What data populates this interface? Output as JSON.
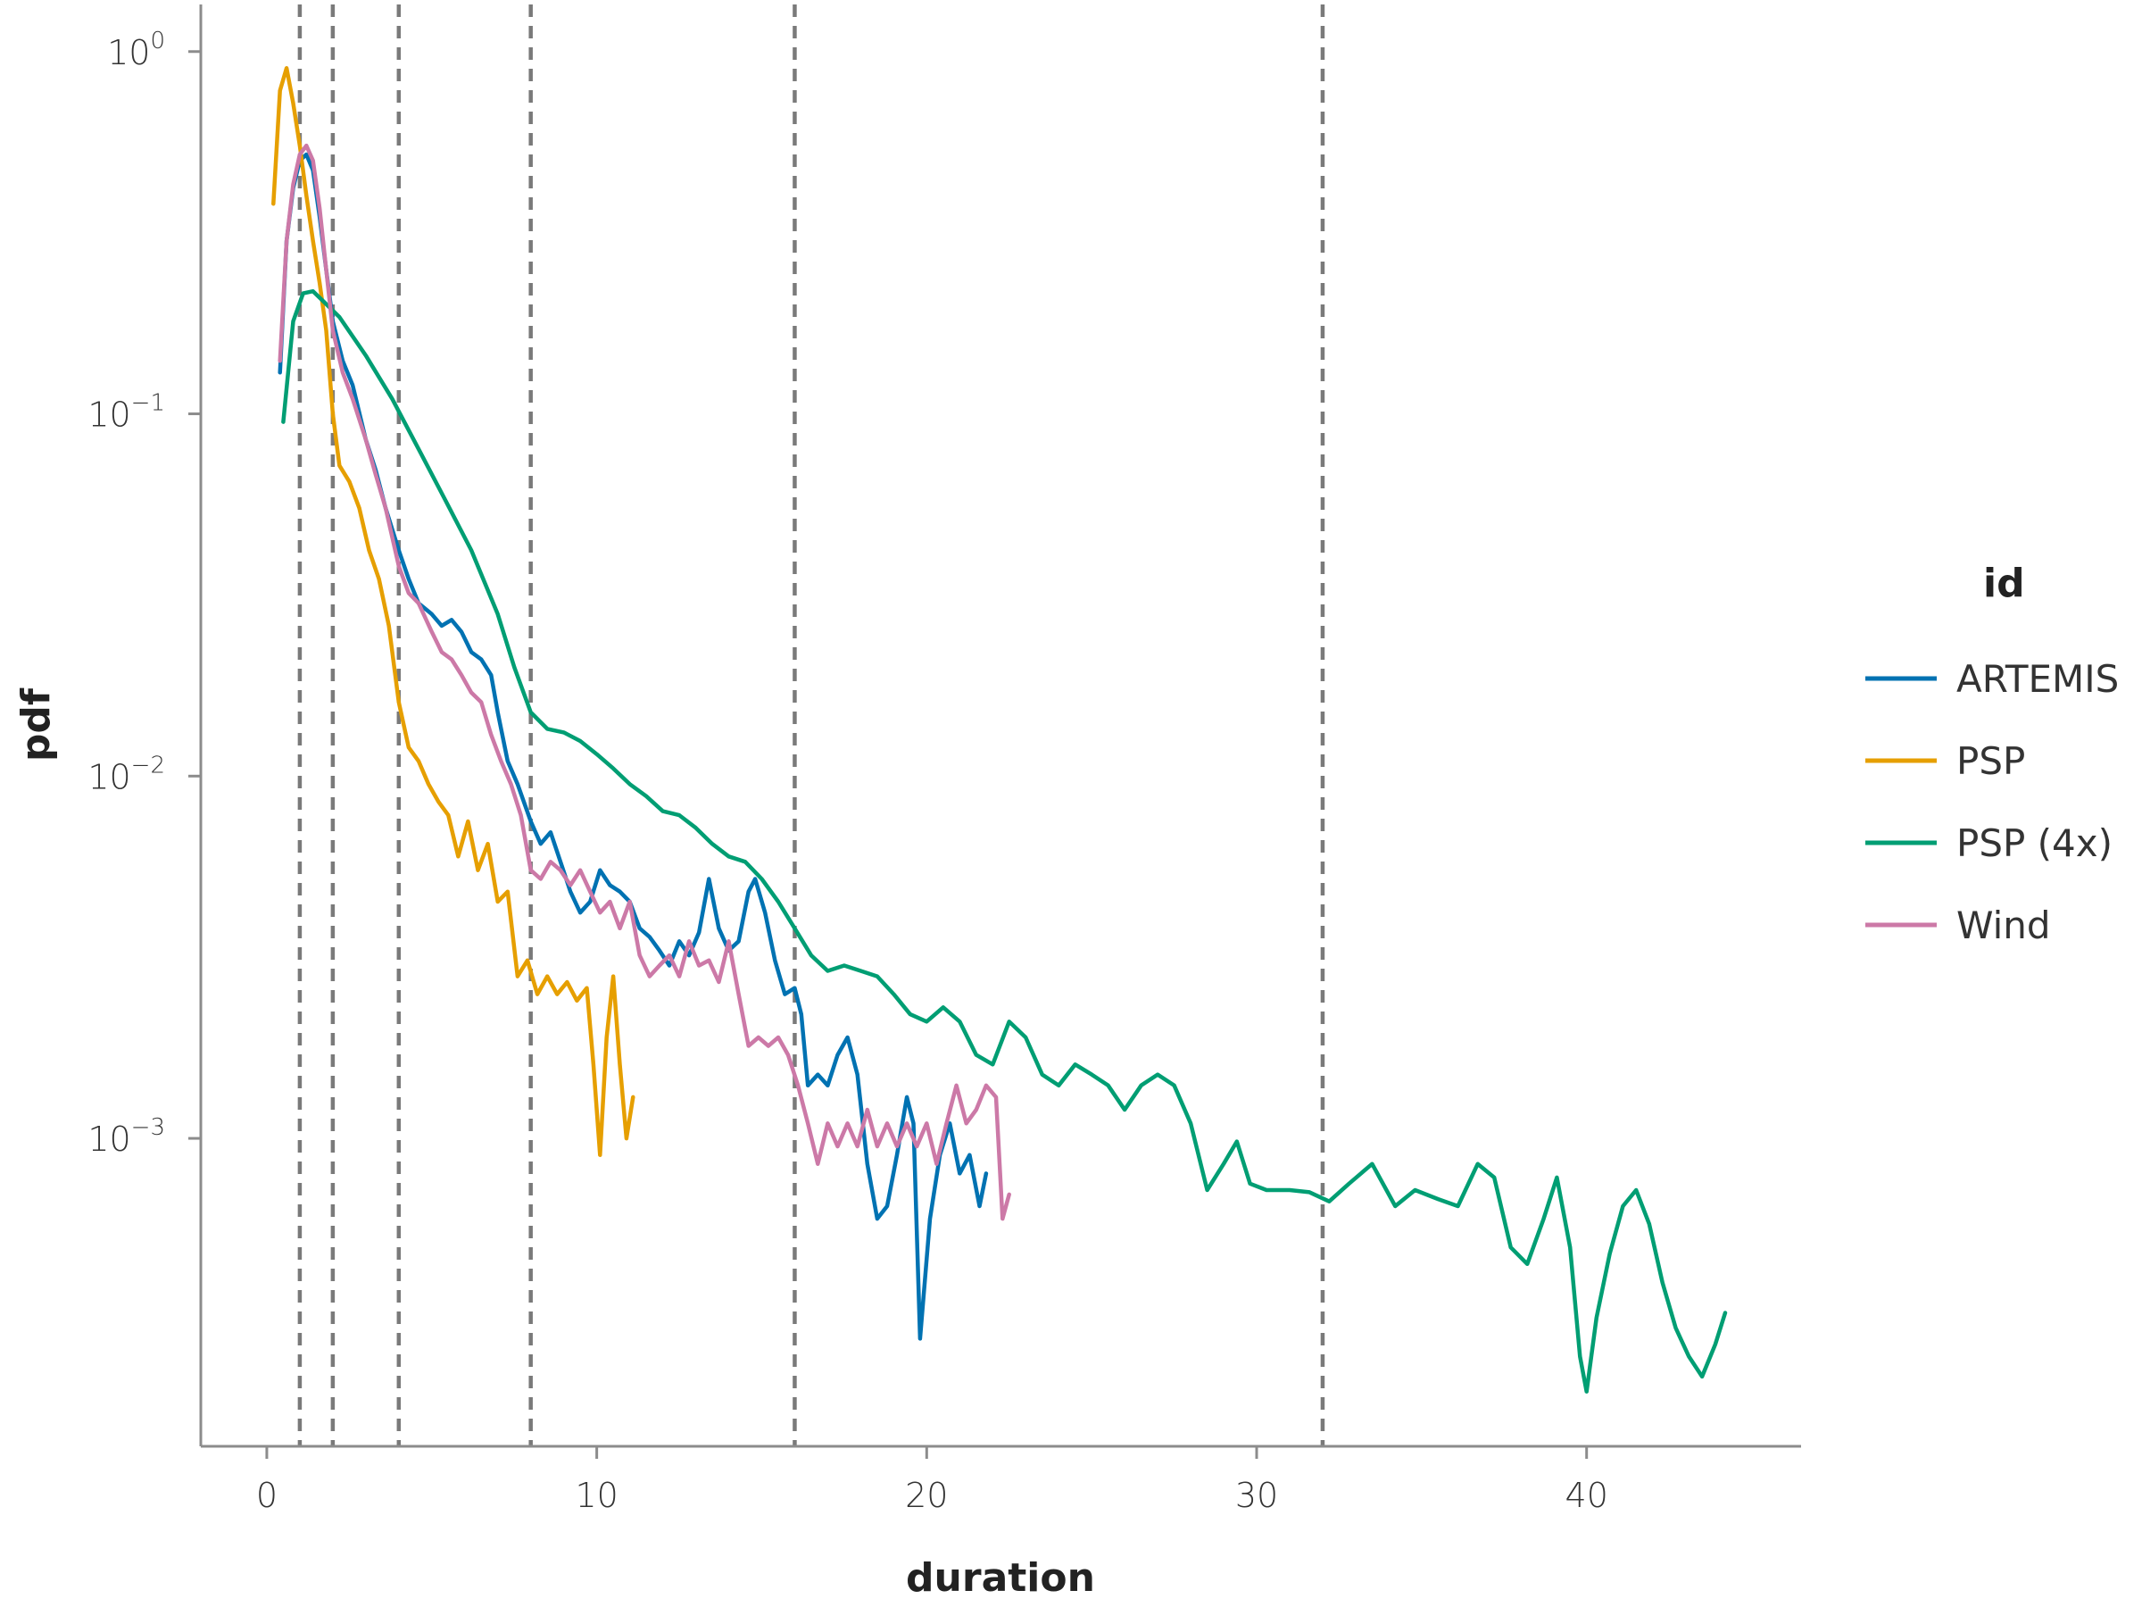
{
  "chart_data": {
    "type": "line",
    "xlabel": "duration",
    "ylabel": "pdf",
    "xlim": [
      -2,
      46.5
    ],
    "ylim_log10": [
      -3.85,
      0.13
    ],
    "y_scale": "log10",
    "x_ticks": [
      0,
      10,
      20,
      30,
      40
    ],
    "y_ticks": [
      {
        "base": "10",
        "exp": "0",
        "value": 1
      },
      {
        "base": "10",
        "exp": "−1",
        "value": 0.1
      },
      {
        "base": "10",
        "exp": "−2",
        "value": 0.01
      },
      {
        "base": "10",
        "exp": "−3",
        "value": 0.001
      }
    ],
    "vertical_lines": [
      1,
      2,
      4,
      8,
      16,
      32
    ],
    "legend": {
      "title": "id",
      "position": "right"
    },
    "series": [
      {
        "name": "ARTEMIS",
        "color": "#0072B2",
        "points": [
          [
            0.4,
            0.13
          ],
          [
            0.6,
            0.3
          ],
          [
            0.8,
            0.42
          ],
          [
            1.0,
            0.5
          ],
          [
            1.2,
            0.52
          ],
          [
            1.4,
            0.47
          ],
          [
            1.6,
            0.35
          ],
          [
            1.8,
            0.25
          ],
          [
            2.0,
            0.18
          ],
          [
            2.3,
            0.14
          ],
          [
            2.6,
            0.12
          ],
          [
            3.0,
            0.085
          ],
          [
            3.3,
            0.07
          ],
          [
            3.6,
            0.055
          ],
          [
            4.0,
            0.042
          ],
          [
            4.3,
            0.035
          ],
          [
            4.6,
            0.03
          ],
          [
            5.0,
            0.028
          ],
          [
            5.3,
            0.026
          ],
          [
            5.6,
            0.027
          ],
          [
            5.9,
            0.025
          ],
          [
            6.2,
            0.022
          ],
          [
            6.5,
            0.021
          ],
          [
            6.8,
            0.019
          ],
          [
            7.0,
            0.015
          ],
          [
            7.3,
            0.011
          ],
          [
            7.6,
            0.0095
          ],
          [
            8.0,
            0.0075
          ],
          [
            8.3,
            0.0065
          ],
          [
            8.6,
            0.007
          ],
          [
            8.9,
            0.0058
          ],
          [
            9.2,
            0.0048
          ],
          [
            9.5,
            0.0042
          ],
          [
            9.8,
            0.0045
          ],
          [
            10.1,
            0.0055
          ],
          [
            10.4,
            0.005
          ],
          [
            10.7,
            0.0048
          ],
          [
            11.0,
            0.0045
          ],
          [
            11.3,
            0.0038
          ],
          [
            11.6,
            0.0036
          ],
          [
            11.9,
            0.0033
          ],
          [
            12.2,
            0.003
          ],
          [
            12.5,
            0.0035
          ],
          [
            12.8,
            0.0032
          ],
          [
            13.1,
            0.0037
          ],
          [
            13.4,
            0.0052
          ],
          [
            13.7,
            0.0038
          ],
          [
            14.0,
            0.0033
          ],
          [
            14.3,
            0.0035
          ],
          [
            14.6,
            0.0048
          ],
          [
            14.8,
            0.0052
          ],
          [
            15.1,
            0.0042
          ],
          [
            15.4,
            0.0031
          ],
          [
            15.7,
            0.0025
          ],
          [
            16.0,
            0.0026
          ],
          [
            16.2,
            0.0022
          ],
          [
            16.4,
            0.0014
          ],
          [
            16.7,
            0.0015
          ],
          [
            17.0,
            0.0014
          ],
          [
            17.3,
            0.0017
          ],
          [
            17.6,
            0.0019
          ],
          [
            17.9,
            0.0015
          ],
          [
            18.2,
            0.00085
          ],
          [
            18.5,
            0.0006
          ],
          [
            18.8,
            0.00065
          ],
          [
            19.1,
            0.0009
          ],
          [
            19.4,
            0.0013
          ],
          [
            19.6,
            0.0011
          ],
          [
            19.8,
            0.00028
          ],
          [
            20.1,
            0.0006
          ],
          [
            20.4,
            0.0009
          ],
          [
            20.7,
            0.0011
          ],
          [
            21.0,
            0.0008
          ],
          [
            21.3,
            0.0009
          ],
          [
            21.6,
            0.00065
          ],
          [
            21.8,
            0.0008
          ]
        ]
      },
      {
        "name": "PSP",
        "color": "#E69F00",
        "points": [
          [
            0.2,
            0.38
          ],
          [
            0.4,
            0.78
          ],
          [
            0.6,
            0.9
          ],
          [
            0.8,
            0.72
          ],
          [
            1.0,
            0.55
          ],
          [
            1.2,
            0.4
          ],
          [
            1.4,
            0.3
          ],
          [
            1.6,
            0.23
          ],
          [
            1.8,
            0.17
          ],
          [
            2.0,
            0.1
          ],
          [
            2.2,
            0.072
          ],
          [
            2.5,
            0.065
          ],
          [
            2.8,
            0.055
          ],
          [
            3.1,
            0.042
          ],
          [
            3.4,
            0.035
          ],
          [
            3.7,
            0.026
          ],
          [
            4.0,
            0.016
          ],
          [
            4.3,
            0.012
          ],
          [
            4.6,
            0.011
          ],
          [
            4.9,
            0.0095
          ],
          [
            5.2,
            0.0085
          ],
          [
            5.5,
            0.0078
          ],
          [
            5.8,
            0.006
          ],
          [
            6.1,
            0.0075
          ],
          [
            6.4,
            0.0055
          ],
          [
            6.7,
            0.0065
          ],
          [
            7.0,
            0.0045
          ],
          [
            7.3,
            0.0048
          ],
          [
            7.6,
            0.0028
          ],
          [
            7.9,
            0.0031
          ],
          [
            8.2,
            0.0025
          ],
          [
            8.5,
            0.0028
          ],
          [
            8.8,
            0.0025
          ],
          [
            9.1,
            0.0027
          ],
          [
            9.4,
            0.0024
          ],
          [
            9.7,
            0.0026
          ],
          [
            9.9,
            0.0016
          ],
          [
            10.1,
            0.0009
          ],
          [
            10.3,
            0.0019
          ],
          [
            10.5,
            0.0028
          ],
          [
            10.7,
            0.0016
          ],
          [
            10.9,
            0.001
          ],
          [
            11.1,
            0.0013
          ]
        ]
      },
      {
        "name": "PSP (4x)",
        "color": "#009E73",
        "points": [
          [
            0.5,
            0.095
          ],
          [
            0.8,
            0.18
          ],
          [
            1.1,
            0.215
          ],
          [
            1.4,
            0.218
          ],
          [
            1.7,
            0.205
          ],
          [
            2.2,
            0.185
          ],
          [
            3.0,
            0.145
          ],
          [
            3.8,
            0.11
          ],
          [
            4.6,
            0.08
          ],
          [
            5.4,
            0.058
          ],
          [
            6.2,
            0.042
          ],
          [
            7.0,
            0.028
          ],
          [
            7.5,
            0.02
          ],
          [
            8.0,
            0.015
          ],
          [
            8.5,
            0.0135
          ],
          [
            9.0,
            0.0132
          ],
          [
            9.5,
            0.0125
          ],
          [
            10.0,
            0.0115
          ],
          [
            10.5,
            0.0105
          ],
          [
            11.0,
            0.0095
          ],
          [
            11.5,
            0.0088
          ],
          [
            12.0,
            0.008
          ],
          [
            12.5,
            0.0078
          ],
          [
            13.0,
            0.0072
          ],
          [
            13.5,
            0.0065
          ],
          [
            14.0,
            0.006
          ],
          [
            14.5,
            0.0058
          ],
          [
            15.0,
            0.0052
          ],
          [
            15.5,
            0.0045
          ],
          [
            16.0,
            0.0038
          ],
          [
            16.5,
            0.0032
          ],
          [
            17.0,
            0.0029
          ],
          [
            17.5,
            0.003
          ],
          [
            18.0,
            0.0029
          ],
          [
            18.5,
            0.0028
          ],
          [
            19.0,
            0.0025
          ],
          [
            19.5,
            0.0022
          ],
          [
            20.0,
            0.0021
          ],
          [
            20.5,
            0.0023
          ],
          [
            21.0,
            0.0021
          ],
          [
            21.5,
            0.0017
          ],
          [
            22.0,
            0.0016
          ],
          [
            22.5,
            0.0021
          ],
          [
            23.0,
            0.0019
          ],
          [
            23.5,
            0.0015
          ],
          [
            24.0,
            0.0014
          ],
          [
            24.5,
            0.0016
          ],
          [
            25.0,
            0.0015
          ],
          [
            25.5,
            0.0014
          ],
          [
            26.0,
            0.0012
          ],
          [
            26.5,
            0.0014
          ],
          [
            27.0,
            0.0015
          ],
          [
            27.5,
            0.0014
          ],
          [
            28.0,
            0.0011
          ],
          [
            28.5,
            0.00072
          ],
          [
            29.0,
            0.00085
          ],
          [
            29.4,
            0.00098
          ],
          [
            29.8,
            0.00075
          ],
          [
            30.3,
            0.00072
          ],
          [
            31.0,
            0.00072
          ],
          [
            31.6,
            0.00071
          ],
          [
            32.2,
            0.00067
          ],
          [
            32.8,
            0.00075
          ],
          [
            33.5,
            0.00085
          ],
          [
            34.2,
            0.00065
          ],
          [
            34.8,
            0.00072
          ],
          [
            35.5,
            0.00068
          ],
          [
            36.1,
            0.00065
          ],
          [
            36.7,
            0.00085
          ],
          [
            37.2,
            0.00078
          ],
          [
            37.7,
            0.0005
          ],
          [
            38.2,
            0.00045
          ],
          [
            38.7,
            0.0006
          ],
          [
            39.1,
            0.00078
          ],
          [
            39.5,
            0.0005
          ],
          [
            39.8,
            0.00025
          ],
          [
            40.0,
            0.0002
          ],
          [
            40.3,
            0.00032
          ],
          [
            40.7,
            0.00048
          ],
          [
            41.1,
            0.00065
          ],
          [
            41.5,
            0.00072
          ],
          [
            41.9,
            0.00058
          ],
          [
            42.3,
            0.0004
          ],
          [
            42.7,
            0.0003
          ],
          [
            43.1,
            0.00025
          ],
          [
            43.5,
            0.00022
          ],
          [
            43.9,
            0.00027
          ],
          [
            44.2,
            0.00033
          ]
        ]
      },
      {
        "name": "Wind",
        "color": "#CC79A7",
        "points": [
          [
            0.4,
            0.14
          ],
          [
            0.6,
            0.3
          ],
          [
            0.8,
            0.43
          ],
          [
            1.0,
            0.52
          ],
          [
            1.2,
            0.55
          ],
          [
            1.4,
            0.5
          ],
          [
            1.6,
            0.37
          ],
          [
            1.8,
            0.25
          ],
          [
            2.0,
            0.17
          ],
          [
            2.3,
            0.13
          ],
          [
            2.6,
            0.11
          ],
          [
            3.0,
            0.085
          ],
          [
            3.3,
            0.068
          ],
          [
            3.6,
            0.055
          ],
          [
            4.0,
            0.038
          ],
          [
            4.3,
            0.032
          ],
          [
            4.6,
            0.03
          ],
          [
            5.0,
            0.025
          ],
          [
            5.3,
            0.022
          ],
          [
            5.6,
            0.021
          ],
          [
            5.9,
            0.019
          ],
          [
            6.2,
            0.017
          ],
          [
            6.5,
            0.016
          ],
          [
            6.8,
            0.013
          ],
          [
            7.1,
            0.011
          ],
          [
            7.4,
            0.0095
          ],
          [
            7.7,
            0.0078
          ],
          [
            8.0,
            0.0055
          ],
          [
            8.3,
            0.0052
          ],
          [
            8.6,
            0.0058
          ],
          [
            8.9,
            0.0055
          ],
          [
            9.2,
            0.005
          ],
          [
            9.5,
            0.0055
          ],
          [
            9.8,
            0.0048
          ],
          [
            10.1,
            0.0042
          ],
          [
            10.4,
            0.0045
          ],
          [
            10.7,
            0.0038
          ],
          [
            11.0,
            0.0045
          ],
          [
            11.3,
            0.0032
          ],
          [
            11.6,
            0.0028
          ],
          [
            11.9,
            0.003
          ],
          [
            12.2,
            0.0032
          ],
          [
            12.5,
            0.0028
          ],
          [
            12.8,
            0.0035
          ],
          [
            13.1,
            0.003
          ],
          [
            13.4,
            0.0031
          ],
          [
            13.7,
            0.0027
          ],
          [
            14.0,
            0.0035
          ],
          [
            14.3,
            0.0025
          ],
          [
            14.6,
            0.0018
          ],
          [
            14.9,
            0.0019
          ],
          [
            15.2,
            0.0018
          ],
          [
            15.5,
            0.0019
          ],
          [
            15.8,
            0.0017
          ],
          [
            16.1,
            0.0014
          ],
          [
            16.4,
            0.0011
          ],
          [
            16.7,
            0.00085
          ],
          [
            17.0,
            0.0011
          ],
          [
            17.3,
            0.00095
          ],
          [
            17.6,
            0.0011
          ],
          [
            17.9,
            0.00095
          ],
          [
            18.2,
            0.0012
          ],
          [
            18.5,
            0.00095
          ],
          [
            18.8,
            0.0011
          ],
          [
            19.1,
            0.00095
          ],
          [
            19.4,
            0.0011
          ],
          [
            19.7,
            0.00095
          ],
          [
            20.0,
            0.0011
          ],
          [
            20.3,
            0.00085
          ],
          [
            20.6,
            0.0011
          ],
          [
            20.9,
            0.0014
          ],
          [
            21.2,
            0.0011
          ],
          [
            21.5,
            0.0012
          ],
          [
            21.8,
            0.0014
          ],
          [
            22.1,
            0.0013
          ],
          [
            22.3,
            0.0006
          ],
          [
            22.5,
            0.0007
          ]
        ]
      }
    ]
  }
}
